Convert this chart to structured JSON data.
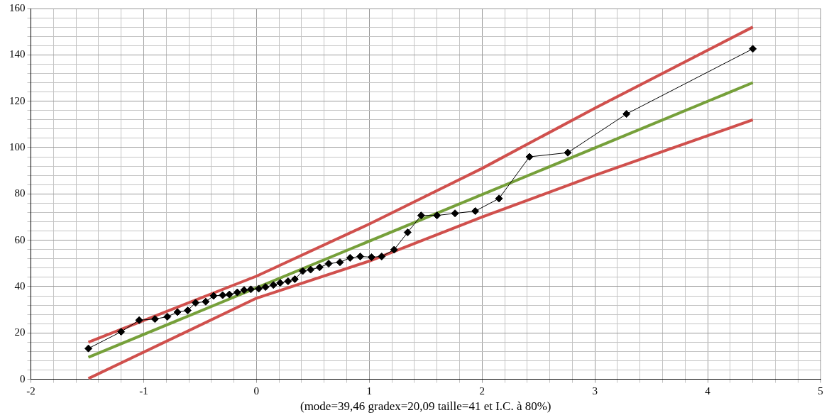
{
  "chart_data": {
    "type": "line",
    "xlabel": "(mode=39,46 gradex=20,09 taille=41 et I.C. à 80%)",
    "legend": false,
    "grid": true,
    "line_style": "solid",
    "xlim": [
      -2,
      5
    ],
    "ylim": [
      0,
      160
    ],
    "xticks": [
      -2,
      {
        "value": -1.8,
        "label": null
      },
      {
        "value": -1.6,
        "label": null
      },
      {
        "value": -1.4,
        "label": null
      },
      {
        "value": -1.2,
        "label": null
      },
      -1,
      {
        "value": -0.8,
        "label": null
      },
      {
        "value": -0.6,
        "label": null
      },
      {
        "value": -0.4,
        "label": null
      },
      {
        "value": -0.2,
        "label": null
      },
      0,
      {
        "value": 0.2,
        "label": null
      },
      {
        "value": 0.4,
        "label": null
      },
      {
        "value": 0.6,
        "label": null
      },
      {
        "value": 0.8,
        "label": null
      },
      1,
      {
        "value": 1.2,
        "label": null
      },
      {
        "value": 1.4,
        "label": null
      },
      {
        "value": 1.6,
        "label": null
      },
      {
        "value": 1.8,
        "label": null
      },
      2,
      {
        "value": 2.2,
        "label": null
      },
      {
        "value": 2.4,
        "label": null
      },
      {
        "value": 2.6,
        "label": null
      },
      {
        "value": 2.8,
        "label": null
      },
      3,
      {
        "value": 3.2,
        "label": null
      },
      {
        "value": 3.4,
        "label": null
      },
      {
        "value": 3.6,
        "label": null
      },
      {
        "value": 3.8,
        "label": null
      },
      4,
      {
        "value": 4.2,
        "label": null
      },
      {
        "value": 4.4,
        "label": null
      },
      {
        "value": 4.6,
        "label": null
      },
      {
        "value": 4.8,
        "label": null
      },
      5
    ],
    "yticks": [
      0,
      {
        "value": 4,
        "label": null
      },
      {
        "value": 8,
        "label": null
      },
      {
        "value": 12,
        "label": null
      },
      {
        "value": 16,
        "label": null
      },
      20,
      {
        "value": 24,
        "label": null
      },
      {
        "value": 28,
        "label": null
      },
      {
        "value": 32,
        "label": null
      },
      {
        "value": 36,
        "label": null
      },
      40,
      {
        "value": 44,
        "label": null
      },
      {
        "value": 48,
        "label": null
      },
      {
        "value": 52,
        "label": null
      },
      {
        "value": 56,
        "label": null
      },
      60,
      {
        "value": 64,
        "label": null
      },
      {
        "value": 68,
        "label": null
      },
      {
        "value": 72,
        "label": null
      },
      {
        "value": 76,
        "label": null
      },
      80,
      {
        "value": 84,
        "label": null
      },
      {
        "value": 88,
        "label": null
      },
      {
        "value": 92,
        "label": null
      },
      {
        "value": 96,
        "label": null
      },
      100,
      {
        "value": 104,
        "label": null
      },
      {
        "value": 108,
        "label": null
      },
      {
        "value": 112,
        "label": null
      },
      {
        "value": 116,
        "label": null
      },
      120,
      {
        "value": 124,
        "label": null
      },
      {
        "value": 128,
        "label": null
      },
      {
        "value": 132,
        "label": null
      },
      {
        "value": 136,
        "label": null
      },
      140,
      {
        "value": 144,
        "label": null
      },
      {
        "value": 148,
        "label": null
      },
      {
        "value": 152,
        "label": null
      },
      {
        "value": 156,
        "label": null
      },
      160
    ],
    "series": [
      {
        "color": "#000000",
        "marker": "diamond",
        "x": [
          -1.49,
          -1.2,
          -1.04,
          -0.9,
          -0.79,
          -0.7,
          -0.61,
          -0.54,
          -0.45,
          -0.38,
          -0.3,
          -0.24,
          -0.17,
          -0.11,
          -0.05,
          0.02,
          0.08,
          0.15,
          0.21,
          0.28,
          0.34,
          0.41,
          0.48,
          0.56,
          0.64,
          0.74,
          0.83,
          0.92,
          1.02,
          1.11,
          1.22,
          1.34,
          1.46,
          1.6,
          1.76,
          1.94,
          2.15,
          2.42,
          2.76,
          3.28,
          4.4
        ],
        "values": [
          13.3,
          20.5,
          25.5,
          26,
          27,
          29,
          29.7,
          33,
          33.5,
          36,
          36.3,
          36.6,
          37.5,
          38.5,
          38.8,
          39.1,
          39.8,
          40.7,
          41.6,
          42.3,
          43.2,
          46.7,
          47.3,
          48.3,
          49.9,
          50.5,
          52.4,
          53,
          52.7,
          53,
          55.9,
          63.4,
          70.7,
          70.7,
          71.6,
          72.6,
          78,
          96,
          97.8,
          114.5,
          142.6
        ]
      },
      {
        "color": "#76a03a",
        "marker": "none",
        "x": [
          -1.49,
          4.4
        ],
        "values": [
          9.5,
          128
        ]
      },
      {
        "color": "#d0504d",
        "marker": "none",
        "x": [
          -1.49,
          0,
          1,
          2,
          3,
          4.4
        ],
        "values": [
          16,
          44.5,
          67,
          91,
          117,
          152
        ]
      },
      {
        "color": "#d0504d",
        "marker": "none",
        "x": [
          -1.49,
          0,
          1,
          2,
          3,
          4.4
        ],
        "values": [
          0.3,
          35,
          51,
          70,
          88,
          112
        ]
      }
    ]
  }
}
